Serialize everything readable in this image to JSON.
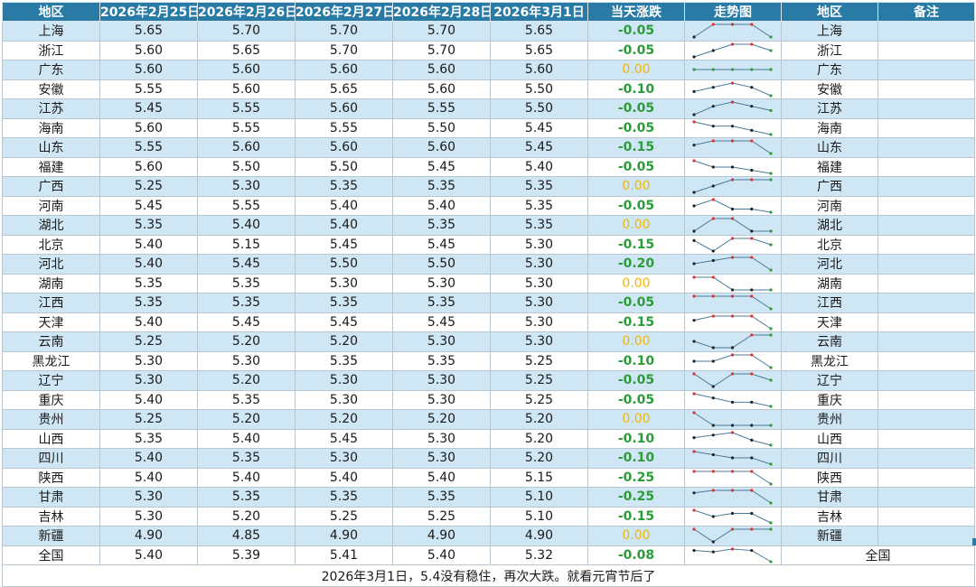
{
  "headers": [
    "地区",
    "2026年2月25日",
    "2026年2月26日",
    "2026年2月27日",
    "2026年2月28日",
    "2026年3月1日",
    "当天涨跌",
    "走势图",
    "地区",
    "备注"
  ],
  "colors": {
    "header_bg": "#2a7aa6",
    "row_blue": "#cfe6f5",
    "down": "#2e9b3a",
    "flat": "#f2b705",
    "up_marker": "#e03030",
    "line": "#4a7a9a"
  },
  "rows": [
    {
      "region": "上海",
      "d1": "5.65",
      "d2": "5.70",
      "d3": "5.70",
      "d4": "5.70",
      "d5": "5.65",
      "change": "-0.05"
    },
    {
      "region": "浙江",
      "d1": "5.60",
      "d2": "5.65",
      "d3": "5.70",
      "d4": "5.70",
      "d5": "5.65",
      "change": "-0.05"
    },
    {
      "region": "广东",
      "d1": "5.60",
      "d2": "5.60",
      "d3": "5.60",
      "d4": "5.60",
      "d5": "5.60",
      "change": "0.00"
    },
    {
      "region": "安徽",
      "d1": "5.55",
      "d2": "5.60",
      "d3": "5.65",
      "d4": "5.60",
      "d5": "5.50",
      "change": "-0.10"
    },
    {
      "region": "江苏",
      "d1": "5.45",
      "d2": "5.55",
      "d3": "5.60",
      "d4": "5.55",
      "d5": "5.50",
      "change": "-0.05"
    },
    {
      "region": "海南",
      "d1": "5.60",
      "d2": "5.55",
      "d3": "5.55",
      "d4": "5.50",
      "d5": "5.45",
      "change": "-0.05"
    },
    {
      "region": "山东",
      "d1": "5.55",
      "d2": "5.60",
      "d3": "5.60",
      "d4": "5.60",
      "d5": "5.45",
      "change": "-0.15"
    },
    {
      "region": "福建",
      "d1": "5.60",
      "d2": "5.50",
      "d3": "5.50",
      "d4": "5.45",
      "d5": "5.40",
      "change": "-0.05"
    },
    {
      "region": "广西",
      "d1": "5.25",
      "d2": "5.30",
      "d3": "5.35",
      "d4": "5.35",
      "d5": "5.35",
      "change": "0.00"
    },
    {
      "region": "河南",
      "d1": "5.45",
      "d2": "5.55",
      "d3": "5.40",
      "d4": "5.40",
      "d5": "5.35",
      "change": "-0.05"
    },
    {
      "region": "湖北",
      "d1": "5.35",
      "d2": "5.40",
      "d3": "5.40",
      "d4": "5.35",
      "d5": "5.35",
      "change": "0.00"
    },
    {
      "region": "北京",
      "d1": "5.40",
      "d2": "5.15",
      "d3": "5.45",
      "d4": "5.45",
      "d5": "5.30",
      "change": "-0.15"
    },
    {
      "region": "河北",
      "d1": "5.40",
      "d2": "5.45",
      "d3": "5.50",
      "d4": "5.50",
      "d5": "5.30",
      "change": "-0.20"
    },
    {
      "region": "湖南",
      "d1": "5.35",
      "d2": "5.35",
      "d3": "5.30",
      "d4": "5.30",
      "d5": "5.30",
      "change": "0.00"
    },
    {
      "region": "江西",
      "d1": "5.35",
      "d2": "5.35",
      "d3": "5.35",
      "d4": "5.35",
      "d5": "5.30",
      "change": "-0.05"
    },
    {
      "region": "天津",
      "d1": "5.40",
      "d2": "5.45",
      "d3": "5.45",
      "d4": "5.45",
      "d5": "5.30",
      "change": "-0.15"
    },
    {
      "region": "云南",
      "d1": "5.25",
      "d2": "5.20",
      "d3": "5.20",
      "d4": "5.30",
      "d5": "5.30",
      "change": "0.00"
    },
    {
      "region": "黑龙江",
      "d1": "5.30",
      "d2": "5.30",
      "d3": "5.35",
      "d4": "5.35",
      "d5": "5.25",
      "change": "-0.10"
    },
    {
      "region": "辽宁",
      "d1": "5.30",
      "d2": "5.20",
      "d3": "5.30",
      "d4": "5.30",
      "d5": "5.25",
      "change": "-0.05"
    },
    {
      "region": "重庆",
      "d1": "5.40",
      "d2": "5.35",
      "d3": "5.30",
      "d4": "5.30",
      "d5": "5.25",
      "change": "-0.05"
    },
    {
      "region": "贵州",
      "d1": "5.25",
      "d2": "5.20",
      "d3": "5.20",
      "d4": "5.20",
      "d5": "5.20",
      "change": "0.00"
    },
    {
      "region": "山西",
      "d1": "5.35",
      "d2": "5.40",
      "d3": "5.45",
      "d4": "5.30",
      "d5": "5.20",
      "change": "-0.10"
    },
    {
      "region": "四川",
      "d1": "5.40",
      "d2": "5.35",
      "d3": "5.30",
      "d4": "5.30",
      "d5": "5.20",
      "change": "-0.10"
    },
    {
      "region": "陕西",
      "d1": "5.40",
      "d2": "5.40",
      "d3": "5.40",
      "d4": "5.40",
      "d5": "5.15",
      "change": "-0.25"
    },
    {
      "region": "甘肃",
      "d1": "5.30",
      "d2": "5.35",
      "d3": "5.35",
      "d4": "5.35",
      "d5": "5.10",
      "change": "-0.25"
    },
    {
      "region": "吉林",
      "d1": "5.30",
      "d2": "5.20",
      "d3": "5.25",
      "d4": "5.25",
      "d5": "5.10",
      "change": "-0.15"
    },
    {
      "region": "新疆",
      "d1": "4.90",
      "d2": "4.85",
      "d3": "4.90",
      "d4": "4.90",
      "d5": "4.90",
      "change": "0.00"
    },
    {
      "region": "全国",
      "d1": "5.40",
      "d2": "5.39",
      "d3": "5.41",
      "d4": "5.40",
      "d5": "5.32",
      "change": "-0.08"
    }
  ],
  "note": "2026年3月1日，5.4没有稳住，再次大跌。就看元宵节后了"
}
